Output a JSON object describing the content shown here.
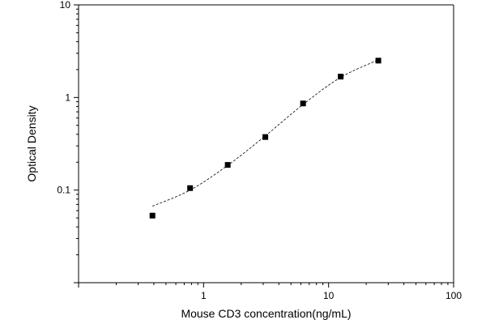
{
  "chart_data": {
    "type": "scatter",
    "title": "",
    "xlabel": "Mouse CD3 concentration(ng/mL)",
    "ylabel": "Optical Density",
    "x_scale": "log",
    "y_scale": "log",
    "xlim": [
      0.1,
      100
    ],
    "ylim": [
      0.01,
      10
    ],
    "x_ticks": [
      {
        "value": 1,
        "label": "1"
      },
      {
        "value": 10,
        "label": "10"
      },
      {
        "value": 100,
        "label": "100"
      }
    ],
    "y_ticks": [
      {
        "value": 0.1,
        "label": "0.1"
      },
      {
        "value": 1,
        "label": "1"
      },
      {
        "value": 10,
        "label": "10"
      }
    ],
    "grid": false,
    "legend": false,
    "series": [
      {
        "marker": "square",
        "x": [
          0.39,
          0.78,
          1.56,
          3.12,
          6.25,
          12.5,
          25
        ],
        "y": [
          0.053,
          0.105,
          0.187,
          0.374,
          0.862,
          1.68,
          2.5
        ]
      }
    ],
    "fit_curve": {
      "style": "dashed",
      "x": [
        0.39,
        0.78,
        1.56,
        3.12,
        6.25,
        12.5,
        25
      ],
      "y": [
        0.067,
        0.1,
        0.185,
        0.385,
        0.84,
        1.65,
        2.55
      ]
    }
  }
}
